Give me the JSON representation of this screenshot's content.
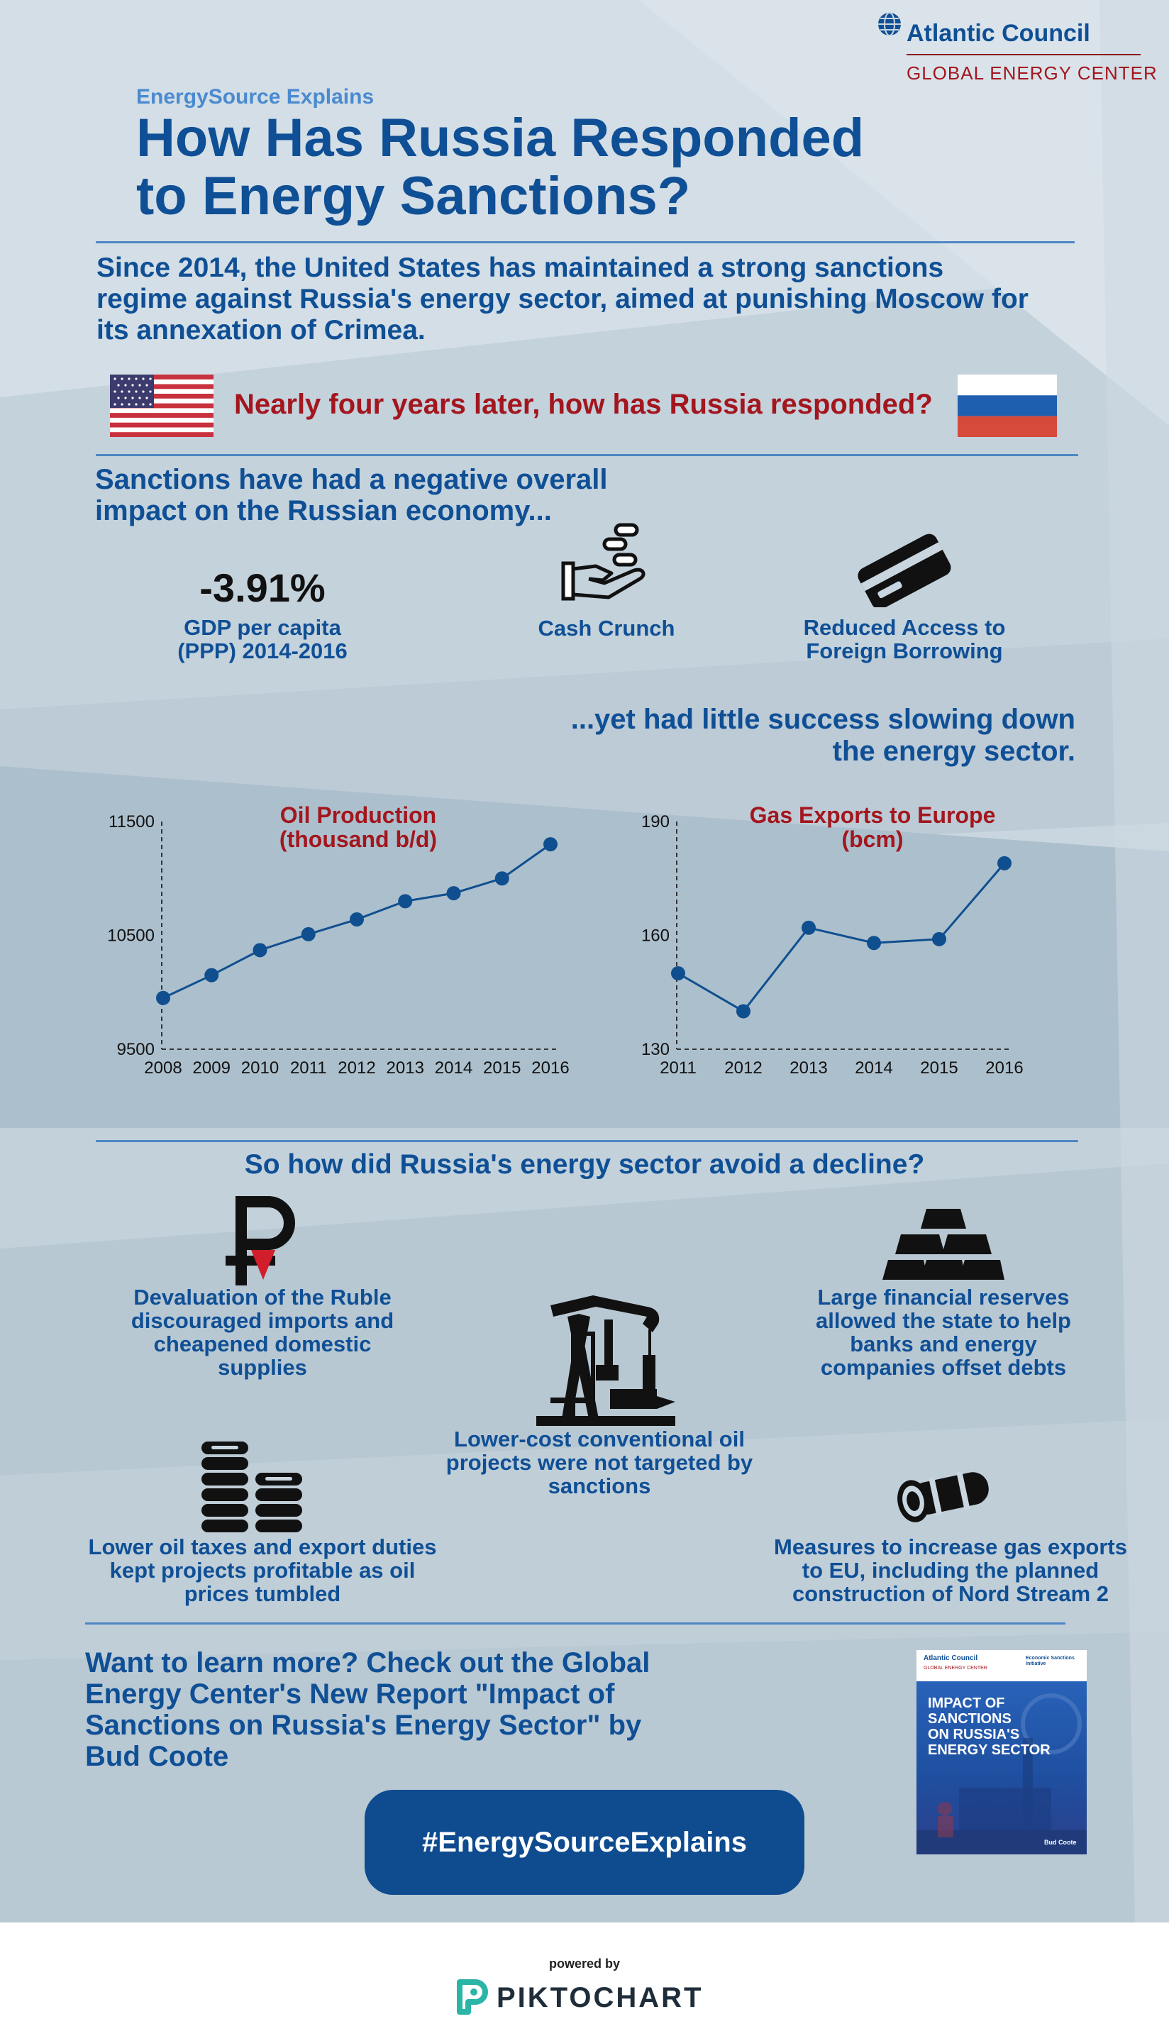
{
  "brand": {
    "org": "Atlantic Council",
    "center": "GLOBAL ENERGY CENTER"
  },
  "header": {
    "kicker": "EnergySource Explains",
    "title_line1": "How Has Russia Responded",
    "title_line2": "to Energy Sanctions?"
  },
  "intro": {
    "line1": "Since 2014, the United States has maintained a strong sanctions",
    "line2": "regime against Russia's energy sector, aimed at punishing Moscow for",
    "line3": "its annexation of Crimea.",
    "question": "Nearly four years later, how has Russia responded?"
  },
  "impact": {
    "heading_line1": "Sanctions have had a negative overall",
    "heading_line2": "impact on the Russian economy...",
    "gdp_value": "-3.91%",
    "gdp_label_line1": "GDP per capita",
    "gdp_label_line2": "(PPP) 2014-2016",
    "cash_label": "Cash Crunch",
    "borrow_label_line1": "Reduced Access to",
    "borrow_label_line2": "Foreign Borrowing",
    "yet_line1": "...yet had little success slowing down",
    "yet_line2": "the energy sector."
  },
  "chart_data": [
    {
      "type": "line",
      "title": "Oil Production (thousand b/d)",
      "title_line1": "Oil Production",
      "title_line2": "(thousand b/d)",
      "x": [
        "2008",
        "2009",
        "2010",
        "2011",
        "2012",
        "2013",
        "2014",
        "2015",
        "2016"
      ],
      "values": [
        9950,
        10150,
        10370,
        10510,
        10640,
        10800,
        10870,
        11000,
        11300
      ],
      "ylim": [
        9500,
        11500
      ],
      "yticks": [
        "11500",
        "10500",
        "9500"
      ],
      "color": "#0f4f8f"
    },
    {
      "type": "line",
      "title": "Gas Exports to Europe (bcm)",
      "title_line1": "Gas Exports to Europe",
      "title_line2": "(bcm)",
      "x": [
        "2011",
        "2012",
        "2013",
        "2014",
        "2015",
        "2016"
      ],
      "values": [
        150,
        140,
        162,
        158,
        159,
        179
      ],
      "ylim": [
        130,
        190
      ],
      "yticks": [
        "190",
        "160",
        "130"
      ],
      "color": "#0f4f8f"
    }
  ],
  "avoid": {
    "heading": "So how did Russia's energy sector avoid a decline?",
    "ruble_line1": "Devaluation of the Ruble",
    "ruble_line2": "discouraged imports and",
    "ruble_line3": "cheapened domestic supplies",
    "reserves_line1": "Large financial reserves",
    "reserves_line2": "allowed the state to help",
    "reserves_line3": "banks and energy",
    "reserves_line4": "companies offset debts",
    "oil_line1": "Lower-cost conventional oil",
    "oil_line2": "projects were not targeted by",
    "oil_line3": "sanctions",
    "taxes_line1": "Lower oil taxes and export duties",
    "taxes_line2": "kept projects profitable as oil",
    "taxes_line3": "prices tumbled",
    "gas_line1": "Measures to increase gas exports",
    "gas_line2": "to EU, including the planned",
    "gas_line3": "construction of Nord Stream 2"
  },
  "learn": {
    "line1": "Want to learn more? Check out the Global",
    "line2": "Energy Center's New Report \"Impact of",
    "line3": "Sanctions on Russia's Energy Sector\" by",
    "line4": "Bud Coote",
    "hashtag": "#EnergySourceExplains",
    "cover_org": "Atlantic Council",
    "cover_center": "GLOBAL ENERGY CENTER",
    "cover_partner": "Economic Sanctions Initiative",
    "cover_title_line1": "IMPACT OF",
    "cover_title_line2": "SANCTIONS",
    "cover_title_line3": "ON RUSSIA'S",
    "cover_title_line4": "ENERGY SECTOR",
    "cover_author": "Bud Coote"
  },
  "footer": {
    "powered": "powered by",
    "brand": "PIKTOCHART"
  }
}
